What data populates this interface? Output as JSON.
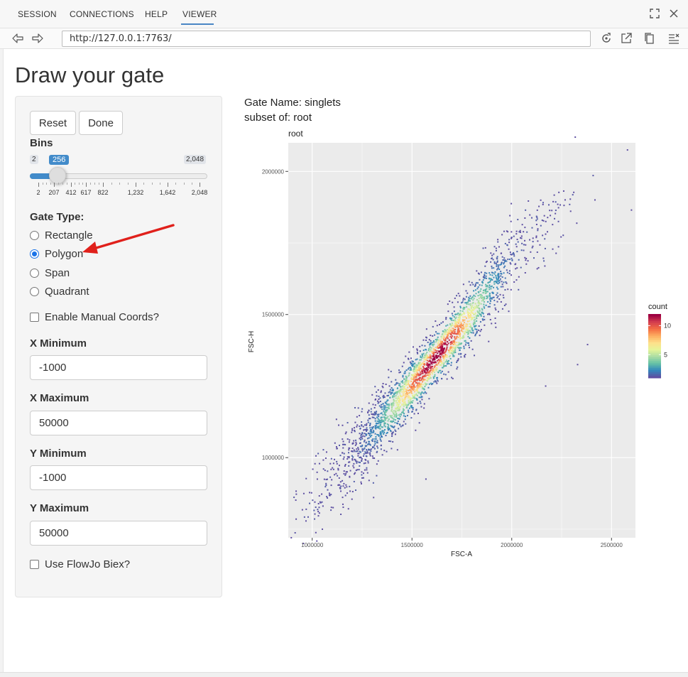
{
  "tabs": [
    {
      "label": "SESSION",
      "active": false
    },
    {
      "label": "CONNECTIONS",
      "active": false
    },
    {
      "label": "HELP",
      "active": false
    },
    {
      "label": "VIEWER",
      "active": true
    }
  ],
  "address": {
    "url": "http://127.0.0.1:7763/"
  },
  "page": {
    "title": "Draw your gate"
  },
  "buttons": {
    "reset": "Reset",
    "done": "Done"
  },
  "bins": {
    "label": "Bins",
    "min_label": "2",
    "max_label": "2,048",
    "value_label": "256",
    "value": 256,
    "min": 2,
    "max": 2048,
    "grid_labels": [
      "2",
      "207",
      "412",
      "617",
      "822",
      "1,232",
      "1,642",
      "2,048"
    ]
  },
  "gate_type": {
    "label": "Gate Type:",
    "options": [
      "Rectangle",
      "Polygon",
      "Span",
      "Quadrant"
    ],
    "selected": "Polygon"
  },
  "manual_coords": {
    "label": "Enable Manual Coords?",
    "checked": false
  },
  "x_min": {
    "label": "X Minimum",
    "value": "-1000"
  },
  "x_max": {
    "label": "X Maximum",
    "value": "50000"
  },
  "y_min": {
    "label": "Y Minimum",
    "value": "-1000"
  },
  "y_max": {
    "label": "Y Maximum",
    "value": "50000"
  },
  "flowjo": {
    "label": "Use FlowJo Biex?",
    "checked": false
  },
  "gate_info": {
    "name_line": "Gate Name: singlets",
    "subset_line": "subset of: root"
  },
  "colors": {
    "accent": "#428bca",
    "annotation_arrow": "#e0201b",
    "panel_bg": "#ebebeb"
  },
  "chart_data": {
    "type": "scatter",
    "title": "root",
    "xlabel": "FSC-A",
    "ylabel": "FSC-H",
    "xlim": [
      880000,
      2620000
    ],
    "ylim": [
      720000,
      2100000
    ],
    "x_ticks": [
      1000000,
      1500000,
      2000000,
      2500000
    ],
    "x_tick_labels": [
      "1000000",
      "1500000",
      "2000000",
      "2500000"
    ],
    "y_ticks": [
      1000000,
      1500000,
      2000000
    ],
    "y_tick_labels": [
      "1000000",
      "1500000",
      "2000000"
    ],
    "grid": true,
    "legend": {
      "title": "count",
      "position": "right",
      "ticks": [
        5,
        10
      ],
      "tick_labels": [
        "5",
        "10"
      ],
      "range": [
        1,
        12
      ]
    },
    "colormap": "spectral",
    "density_trend": {
      "x": [
        900000,
        1200000,
        1500000,
        1800000,
        2000000,
        2300000
      ],
      "y": [
        780000,
        1000000,
        1250000,
        1500000,
        1700000,
        1900000
      ]
    },
    "outliers": {
      "x": [
        2580000,
        2600000,
        2380000,
        2330000,
        2170000,
        1570000
      ],
      "y": [
        2075000,
        1865000,
        1395000,
        1325000,
        1250000,
        925000
      ]
    }
  }
}
